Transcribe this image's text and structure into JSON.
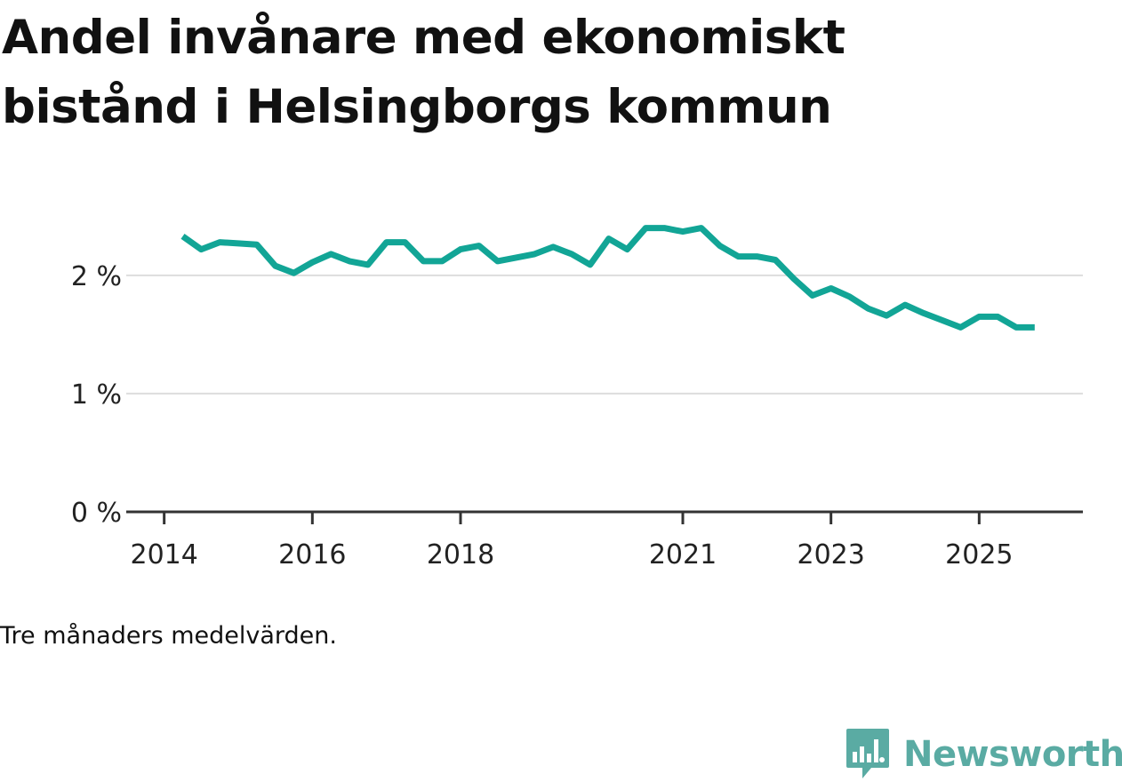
{
  "colors": {
    "line": "#12a596",
    "grid": "#dddddd",
    "axis": "#333333",
    "brand": "#5aaba3"
  },
  "title": "Andel invånare med ekonomiskt bistånd i Helsingborgs kommun",
  "note": "Tre månaders medelvärden.",
  "brand": {
    "name": "Newsworthy",
    "icon": "bar-chart-speech-bubble-icon"
  },
  "chart_data": {
    "type": "line",
    "title": "Andel invånare med ekonomiskt bistånd i Helsingborgs kommun",
    "xlabel": "",
    "ylabel": "",
    "ylim": [
      0,
      2.6
    ],
    "y_ticks": [
      0,
      1,
      2
    ],
    "y_tick_labels": [
      "0 %",
      "1 %",
      "2 %"
    ],
    "x_range": [
      2013.8,
      2026.4
    ],
    "x_ticks": [
      2014,
      2016,
      2018,
      2021,
      2023,
      2025
    ],
    "x_tick_labels": [
      "2014",
      "2016",
      "2018",
      "2021",
      "2023",
      "2025"
    ],
    "grid": true,
    "series": [
      {
        "name": "Andel invånare med ekonomiskt bistånd",
        "x": [
          2014.25,
          2014.5,
          2014.75,
          2015.0,
          2015.25,
          2015.5,
          2015.75,
          2016.0,
          2016.25,
          2016.5,
          2016.75,
          2017.0,
          2017.25,
          2017.5,
          2017.75,
          2018.0,
          2018.25,
          2018.5,
          2018.75,
          2019.0,
          2019.25,
          2019.5,
          2019.75,
          2020.0,
          2020.25,
          2020.5,
          2020.75,
          2021.0,
          2021.25,
          2021.5,
          2021.75,
          2022.0,
          2022.25,
          2022.5,
          2022.75,
          2023.0,
          2023.25,
          2023.5,
          2023.75,
          2024.0,
          2024.25,
          2024.5,
          2024.75,
          2025.0,
          2025.25,
          2025.5,
          2025.75
        ],
        "values": [
          2.33,
          2.22,
          2.28,
          2.27,
          2.26,
          2.08,
          2.02,
          2.11,
          2.18,
          2.12,
          2.09,
          2.28,
          2.28,
          2.12,
          2.12,
          2.22,
          2.25,
          2.12,
          2.15,
          2.18,
          2.24,
          2.18,
          2.09,
          2.31,
          2.22,
          2.4,
          2.4,
          2.37,
          2.4,
          2.25,
          2.16,
          2.16,
          2.13,
          1.97,
          1.83,
          1.89,
          1.82,
          1.72,
          1.66,
          1.75,
          1.68,
          1.62,
          1.56,
          1.65,
          1.65,
          1.56,
          1.56
        ]
      }
    ]
  }
}
